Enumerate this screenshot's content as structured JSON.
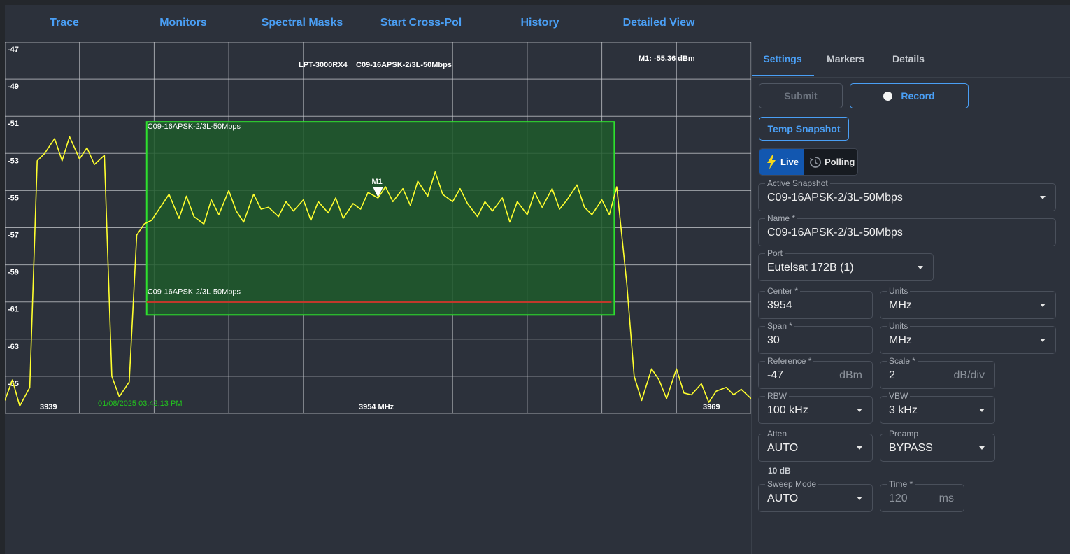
{
  "nav": {
    "items": [
      "Trace",
      "Monitors",
      "Spectral Masks",
      "Start Cross-Pol",
      "History",
      "Detailed View"
    ]
  },
  "plot": {
    "title_left": "LPT-3000RX4",
    "title_right": "C09-16APSK-2/3L-50Mbps",
    "marker_readout": "M1: -55.36 dBm",
    "marker_label": "M1",
    "mask_top_label": "C09-16APSK-2/3L-50Mbps",
    "mask_bottom_label": "C09-16APSK-2/3L-50Mbps",
    "start_freq_label": "3939",
    "center_freq_label": "3954 MHz",
    "stop_freq_label": "3969",
    "timestamp": "01/08/2025 03:42:13 PM",
    "colors": {
      "trace": "#ffff2e",
      "mask_fill": "#1e5a2c",
      "mask_border": "#2ee02e",
      "threshold": "#c0392b",
      "grid": "#c8cbd0"
    }
  },
  "chart_data": {
    "type": "line",
    "xlabel": "",
    "ylabel": "",
    "xlim": [
      3939,
      3969
    ],
    "ylim": [
      -67,
      -47
    ],
    "y_ticks": [
      -47,
      -49,
      -51,
      -53,
      -55,
      -57,
      -59,
      -61,
      -63,
      -65
    ],
    "unit_y": "dBm",
    "marker": {
      "name": "M1",
      "x": 3954,
      "y": -55.36
    },
    "mask": {
      "x_start": 3944.7,
      "x_end": 3963.5,
      "y_top": -51.3,
      "y_bottom": -61.7,
      "threshold_y": -61.0
    },
    "series": [
      {
        "x": [
          3939.0,
          3939.3,
          3939.6,
          3940.0,
          3940.3,
          3940.6,
          3941.0,
          3941.3,
          3941.6,
          3942.0,
          3942.3,
          3942.6,
          3943.0,
          3943.3,
          3943.6,
          3944.0,
          3944.3,
          3944.6,
          3944.9,
          3945.3,
          3945.6,
          3946.0,
          3946.3,
          3946.6,
          3947.0,
          3947.3,
          3947.6,
          3948.0,
          3948.3,
          3948.6,
          3949.0,
          3949.3,
          3949.6,
          3950.0,
          3950.3,
          3950.6,
          3951.0,
          3951.3,
          3951.6,
          3952.0,
          3952.3,
          3952.6,
          3953.0,
          3953.3,
          3953.6,
          3954.0,
          3954.3,
          3954.6,
          3955.0,
          3955.3,
          3955.6,
          3956.0,
          3956.3,
          3956.6,
          3957.0,
          3957.3,
          3957.6,
          3958.0,
          3958.3,
          3958.6,
          3959.0,
          3959.3,
          3959.6,
          3960.0,
          3960.3,
          3960.6,
          3961.0,
          3961.3,
          3961.6,
          3962.0,
          3962.3,
          3962.6,
          3963.0,
          3963.3,
          3963.6,
          3964.0,
          3964.3,
          3964.6,
          3965.0,
          3965.3,
          3965.6,
          3966.0,
          3966.3,
          3966.6,
          3967.0,
          3967.3,
          3967.6,
          3968.0,
          3968.3,
          3968.6,
          3969.0
        ],
        "values": [
          -66.3,
          -65.2,
          -66.6,
          -65.6,
          -53.4,
          -53.0,
          -52.2,
          -53.4,
          -52.1,
          -53.3,
          -52.7,
          -53.6,
          -53.1,
          -65.0,
          -66.1,
          -65.3,
          -57.4,
          -56.8,
          -56.6,
          -55.8,
          -55.2,
          -56.5,
          -55.3,
          -56.4,
          -56.8,
          -55.5,
          -56.3,
          -55.0,
          -56.1,
          -56.7,
          -55.2,
          -56.0,
          -55.9,
          -56.4,
          -55.6,
          -56.1,
          -55.5,
          -56.6,
          -55.6,
          -56.2,
          -55.4,
          -56.5,
          -55.7,
          -56.0,
          -55.1,
          -55.4,
          -54.8,
          -55.6,
          -54.9,
          -55.8,
          -54.5,
          -55.3,
          -54.0,
          -55.2,
          -55.6,
          -54.9,
          -55.7,
          -56.4,
          -55.6,
          -56.1,
          -55.4,
          -56.7,
          -55.6,
          -56.3,
          -55.1,
          -55.9,
          -54.9,
          -56.0,
          -55.5,
          -54.7,
          -55.9,
          -56.3,
          -55.5,
          -56.3,
          -54.8,
          -60.0,
          -65.0,
          -66.3,
          -64.6,
          -65.2,
          -66.2,
          -64.6,
          -65.9,
          -66.0,
          -65.4,
          -66.4,
          -65.8,
          -65.6,
          -66.0,
          -65.7,
          -66.2
        ]
      }
    ]
  },
  "panel": {
    "tabs": [
      "Settings",
      "Markers",
      "Details"
    ],
    "submit_label": "Submit",
    "record_label": "Record",
    "temp_snapshot_label": "Temp Snapshot",
    "live_label": "Live",
    "polling_label": "Polling",
    "active_snapshot": {
      "label": "Active Snapshot",
      "value": "C09-16APSK-2/3L-50Mbps"
    },
    "name": {
      "label": "Name *",
      "value": "C09-16APSK-2/3L-50Mbps"
    },
    "port": {
      "label": "Port",
      "value": "Eutelsat 172B (1)"
    },
    "center": {
      "label": "Center *",
      "value": "3954"
    },
    "center_units": {
      "label": "Units",
      "value": "MHz"
    },
    "span": {
      "label": "Span *",
      "value": "30"
    },
    "span_units": {
      "label": "Units",
      "value": "MHz"
    },
    "reference": {
      "label": "Reference *",
      "value": "-47",
      "unit": "dBm"
    },
    "scale": {
      "label": "Scale *",
      "value": "2",
      "unit": "dB/div"
    },
    "rbw": {
      "label": "RBW",
      "value": "100 kHz"
    },
    "vbw": {
      "label": "VBW",
      "value": "3 kHz"
    },
    "atten": {
      "label": "Atten",
      "value": "AUTO"
    },
    "preamp": {
      "label": "Preamp",
      "value": "BYPASS"
    },
    "atten_note": "10 dB",
    "sweep_mode": {
      "label": "Sweep Mode",
      "value": "AUTO"
    },
    "time": {
      "label": "Time *",
      "value": "120",
      "unit": "ms"
    }
  }
}
